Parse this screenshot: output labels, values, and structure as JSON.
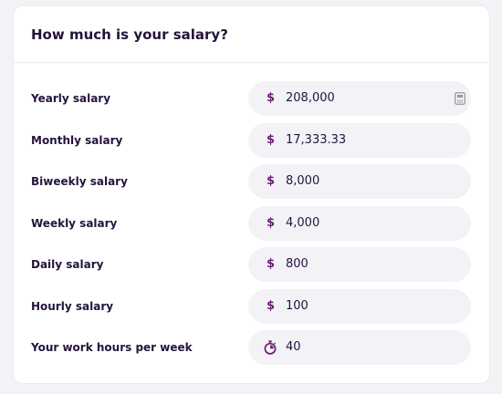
{
  "card": {
    "title": "How much is your salary?"
  },
  "rows": [
    {
      "label": "Yearly salary",
      "prefix": "$",
      "value": "208,000"
    },
    {
      "label": "Monthly salary",
      "prefix": "$",
      "value": "17,333.33"
    },
    {
      "label": "Biweekly salary",
      "prefix": "$",
      "value": "8,000"
    },
    {
      "label": "Weekly salary",
      "prefix": "$",
      "value": "4,000"
    },
    {
      "label": "Daily salary",
      "prefix": "$",
      "value": "800"
    },
    {
      "label": "Hourly salary",
      "prefix": "$",
      "value": "100"
    },
    {
      "label": "Your work hours per week",
      "prefix_icon": "stopwatch-icon",
      "value": "40"
    }
  ],
  "icons": {
    "calculator": "calculator-icon",
    "stopwatch": "stopwatch-icon"
  },
  "colors": {
    "background": "#f3f2f6",
    "card": "#ffffff",
    "field": "#f3f2f7",
    "text": "#24143c",
    "accent": "#6b1f73"
  }
}
